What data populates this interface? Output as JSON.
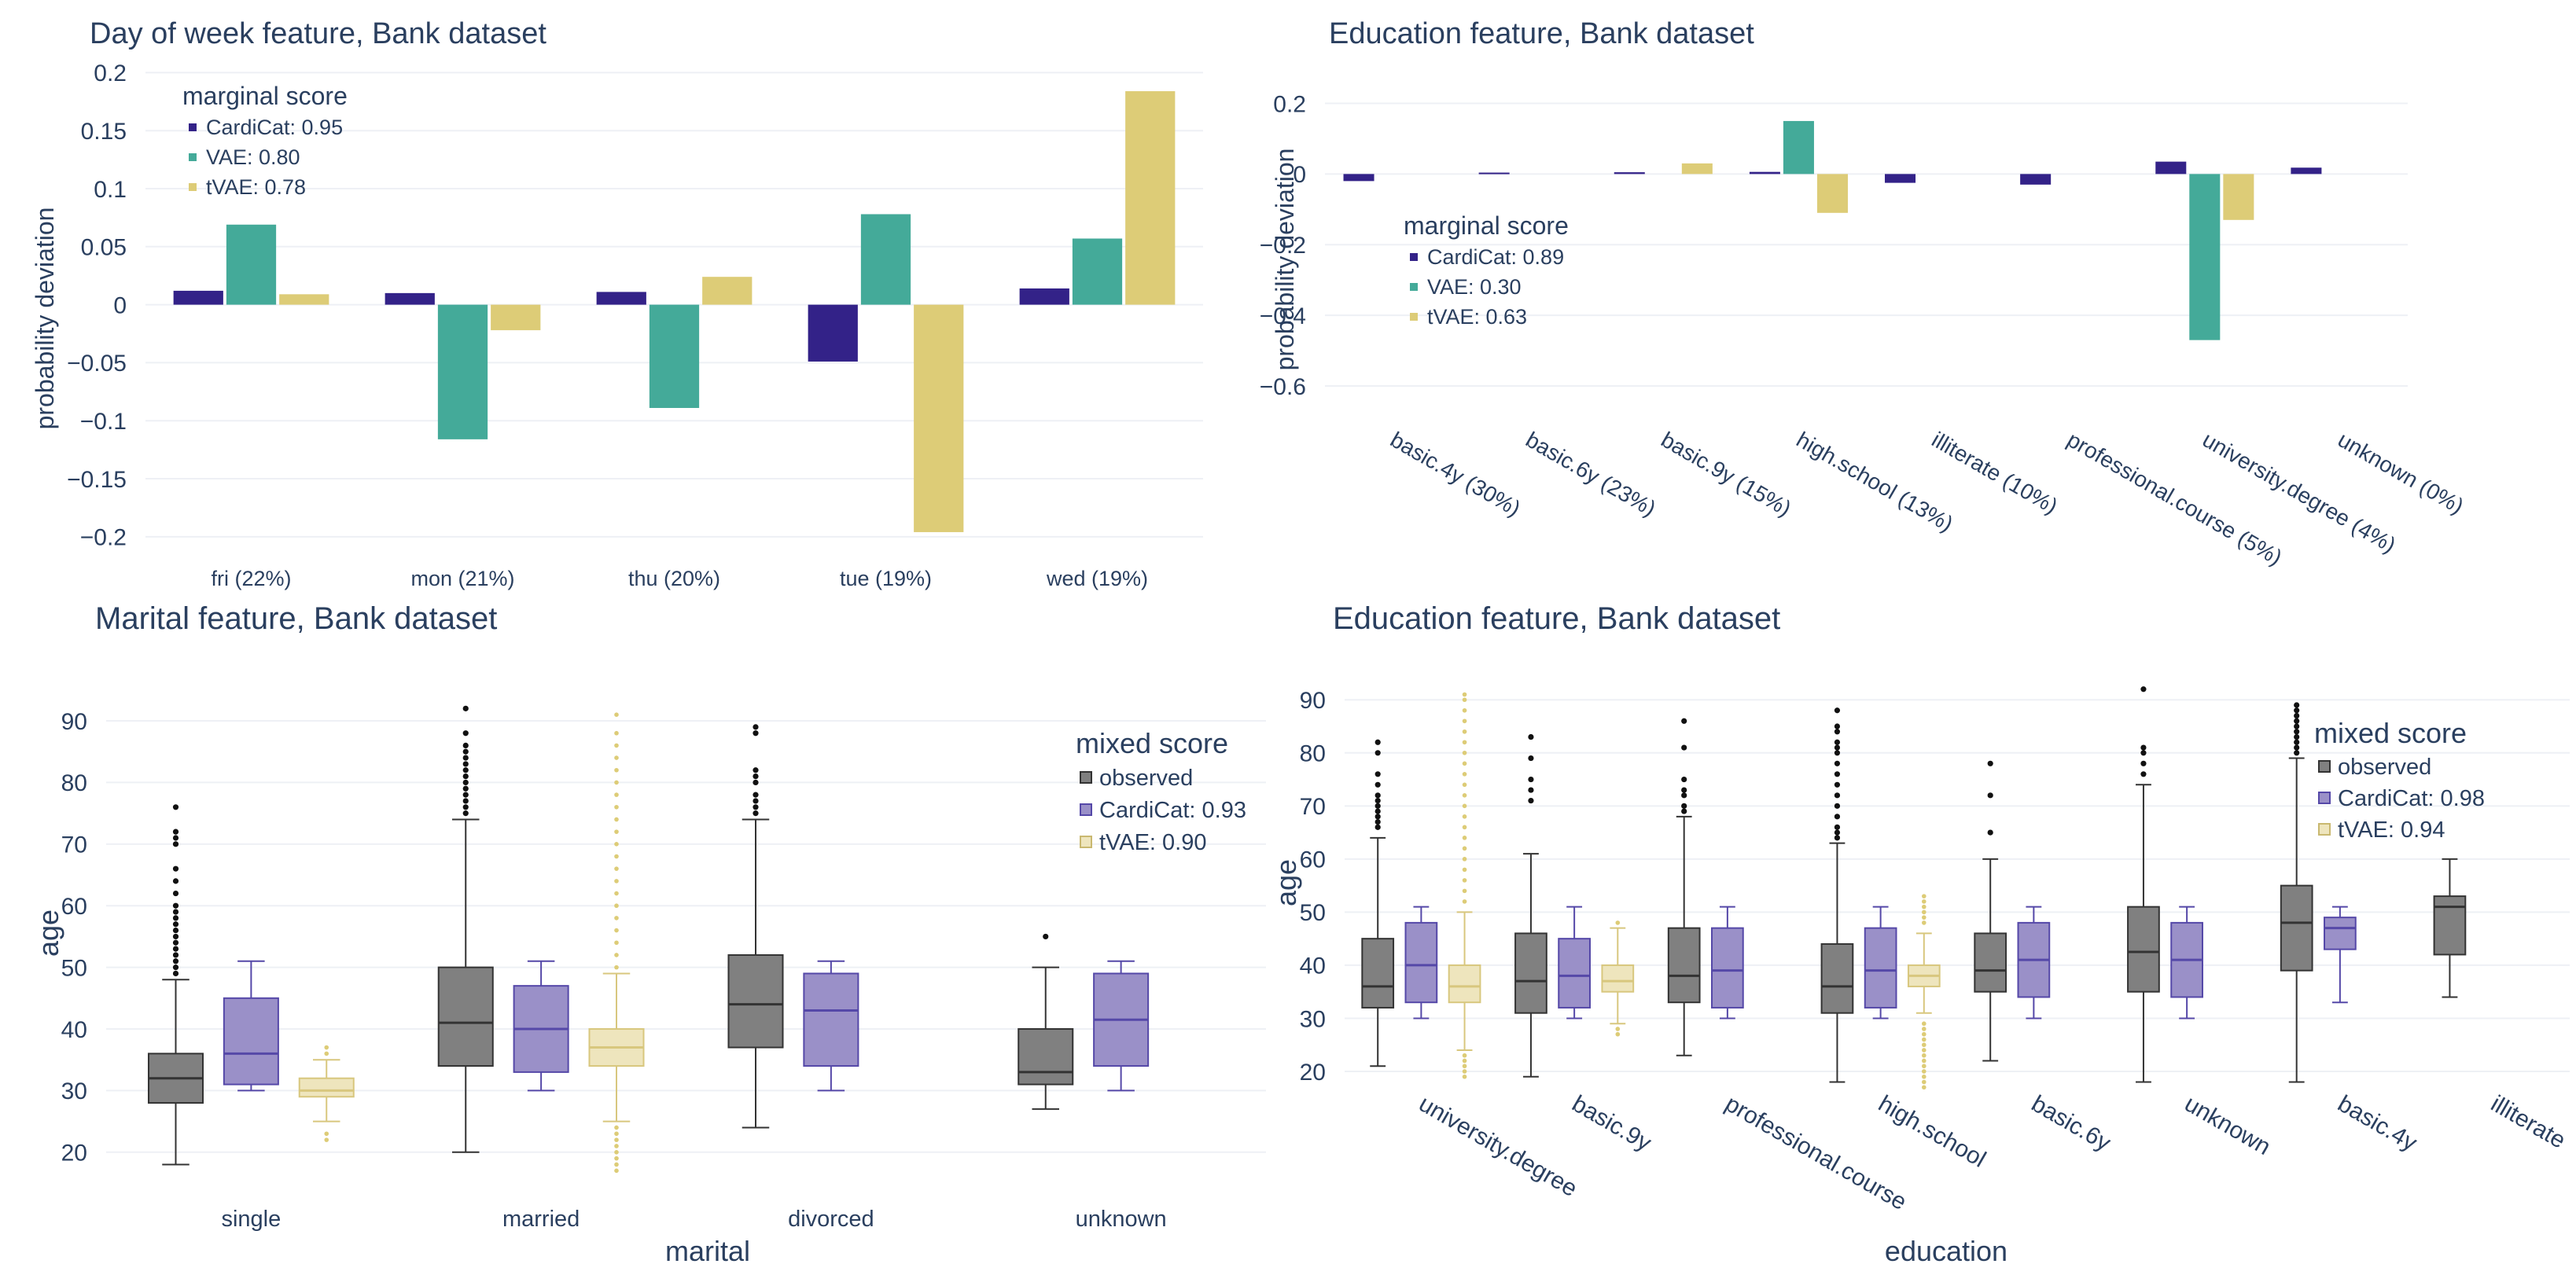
{
  "colors": {
    "text": "#2a3f5f",
    "grid": "#eef0f5",
    "cardicat": "#332288",
    "vae": "#44aa99",
    "tvae": "#ddcc77",
    "observed": "#808080",
    "cardicat_box": "#9a90c8",
    "tvae_box": "#eee5bd"
  },
  "chart_data": [
    {
      "id": "dow",
      "type": "bar",
      "title": "Day of week feature, Bank dataset",
      "ylabel": "probability deviation",
      "xlabel": "",
      "categories": [
        "fri (22%)",
        "mon (21%)",
        "thu (20%)",
        "tue (19%)",
        "wed (19%)"
      ],
      "ylim": [
        -0.215,
        0.205
      ],
      "yticks": [
        -0.2,
        -0.15,
        -0.1,
        -0.05,
        0,
        0.05,
        0.1,
        0.15,
        0.2
      ],
      "ytick_labels": [
        "−0.2",
        "−0.15",
        "−0.1",
        "−0.05",
        "0",
        "0.05",
        "0.1",
        "0.15",
        "0.2"
      ],
      "legend_title": "marginal score",
      "legend_position": "top-left",
      "series": [
        {
          "name": "CardiCat: 0.95",
          "color_key": "cardicat",
          "values": [
            0.012,
            0.01,
            0.011,
            -0.049,
            0.014
          ]
        },
        {
          "name": "VAE: 0.80",
          "color_key": "vae",
          "values": [
            0.069,
            -0.116,
            -0.089,
            0.078,
            0.057
          ]
        },
        {
          "name": "tVAE: 0.78",
          "color_key": "tvae",
          "values": [
            0.009,
            -0.022,
            0.024,
            -0.196,
            0.184
          ]
        }
      ]
    },
    {
      "id": "edu_bar",
      "type": "bar",
      "title": "Education feature, Bank dataset",
      "ylabel": "probability deviation",
      "xlabel": "",
      "categories": [
        "basic.4y (30%)",
        "basic.6y (23%)",
        "basic.9y (15%)",
        "high.school (13%)",
        "illiterate (10%)",
        "professional.course (5%)",
        "university.degree (4%)",
        "unknown (0%)"
      ],
      "ylim": [
        -0.72,
        0.27
      ],
      "yticks": [
        -0.6,
        -0.4,
        -0.2,
        0,
        0.2
      ],
      "ytick_labels": [
        "−0.6",
        "−0.4",
        "−0.2",
        "0",
        "0.2"
      ],
      "legend_title": "marginal score",
      "legend_position": "middle-left",
      "series": [
        {
          "name": "CardiCat: 0.89",
          "color_key": "cardicat",
          "values": [
            -0.02,
            0.004,
            0.005,
            0.006,
            -0.025,
            -0.03,
            0.035,
            0.018
          ]
        },
        {
          "name": "VAE: 0.30",
          "color_key": "vae",
          "values": [
            0,
            0,
            0,
            0.15,
            0,
            0,
            -0.47,
            0
          ]
        },
        {
          "name": "tVAE: 0.63",
          "color_key": "tvae",
          "values": [
            0,
            0,
            0.03,
            -0.11,
            0,
            0,
            -0.13,
            0
          ]
        }
      ]
    },
    {
      "id": "marital_box",
      "type": "box",
      "title": "Marital feature, Bank dataset",
      "ylabel": "age",
      "xlabel": "marital",
      "categories": [
        "single",
        "married",
        "divorced",
        "unknown"
      ],
      "ylim": [
        15,
        96
      ],
      "yticks": [
        20,
        30,
        40,
        50,
        60,
        70,
        80,
        90
      ],
      "legend_title": "mixed score",
      "legend_position": "top-right",
      "series": [
        {
          "name": "observed",
          "color_key": "observed",
          "boxes": [
            {
              "min": 18,
              "q1": 28,
              "median": 32,
              "q3": 36,
              "max": 48,
              "outliers": [
                49,
                50,
                51,
                52,
                53,
                54,
                55,
                56,
                57,
                58,
                59,
                60,
                62,
                64,
                66,
                70,
                71,
                72,
                76
              ]
            },
            {
              "min": 20,
              "q1": 34,
              "median": 41,
              "q3": 50,
              "max": 74,
              "outliers": [
                75,
                76,
                77,
                78,
                79,
                80,
                81,
                82,
                83,
                84,
                85,
                86,
                88,
                92
              ]
            },
            {
              "min": 24,
              "q1": 37,
              "median": 44,
              "q3": 52,
              "max": 74,
              "outliers": [
                75,
                76,
                77,
                78,
                80,
                81,
                82,
                88,
                89
              ]
            },
            {
              "min": 27,
              "q1": 31,
              "median": 33,
              "q3": 40,
              "max": 50,
              "outliers": [
                55
              ]
            }
          ]
        },
        {
          "name": "CardiCat: 0.93",
          "color_key": "cardicat_box",
          "boxes": [
            {
              "min": 30,
              "q1": 31,
              "median": 36,
              "q3": 45,
              "max": 51,
              "outliers": []
            },
            {
              "min": 30,
              "q1": 33,
              "median": 40,
              "q3": 47,
              "max": 51,
              "outliers": []
            },
            {
              "min": 30,
              "q1": 34,
              "median": 43,
              "q3": 49,
              "max": 51,
              "outliers": []
            },
            {
              "min": 30,
              "q1": 34,
              "median": 41.5,
              "q3": 49,
              "max": 51,
              "outliers": []
            }
          ]
        },
        {
          "name": "tVAE: 0.90",
          "color_key": "tvae_box",
          "boxes": [
            {
              "min": 25,
              "q1": 29,
              "median": 30,
              "q3": 32,
              "max": 35,
              "outliers": [
                22,
                23,
                36,
                37
              ]
            },
            {
              "min": 25,
              "q1": 34,
              "median": 37,
              "q3": 40,
              "max": 49,
              "outliers": [
                17,
                18,
                19,
                20,
                21,
                22,
                23,
                24,
                50,
                52,
                54,
                56,
                58,
                60,
                62,
                64,
                66,
                68,
                70,
                72,
                74,
                76,
                78,
                80,
                82,
                84,
                86,
                88,
                91
              ]
            },
            null,
            null
          ]
        }
      ]
    },
    {
      "id": "edu_box",
      "type": "box",
      "title": "Education feature, Bank dataset",
      "ylabel": "age",
      "xlabel": "education",
      "categories": [
        "university.degree",
        "basic.9y",
        "professional.course",
        "high.school",
        "basic.6y",
        "unknown",
        "basic.4y",
        "illiterate"
      ],
      "ylim": [
        16,
        93
      ],
      "yticks": [
        20,
        30,
        40,
        50,
        60,
        70,
        80,
        90
      ],
      "legend_title": "mixed score",
      "legend_position": "top-right",
      "series": [
        {
          "name": "observed",
          "color_key": "observed",
          "boxes": [
            {
              "min": 21,
              "q1": 32,
              "median": 36,
              "q3": 45,
              "max": 64,
              "outliers": [
                66,
                67,
                68,
                69,
                70,
                71,
                72,
                74,
                76,
                80,
                82
              ]
            },
            {
              "min": 19,
              "q1": 31,
              "median": 37,
              "q3": 46,
              "max": 61,
              "outliers": [
                71,
                73,
                75,
                79,
                83
              ]
            },
            {
              "min": 23,
              "q1": 33,
              "median": 38,
              "q3": 47,
              "max": 68,
              "outliers": [
                69,
                70,
                72,
                73,
                75,
                81,
                86
              ]
            },
            {
              "min": 18,
              "q1": 31,
              "median": 36,
              "q3": 44,
              "max": 63,
              "outliers": [
                64,
                65,
                66,
                68,
                70,
                72,
                74,
                76,
                78,
                80,
                81,
                82,
                84,
                85,
                88
              ]
            },
            {
              "min": 22,
              "q1": 35,
              "median": 39,
              "q3": 46,
              "max": 60,
              "outliers": [
                65,
                72,
                78
              ]
            },
            {
              "min": 18,
              "q1": 35,
              "median": 42.5,
              "q3": 51,
              "max": 74,
              "outliers": [
                76,
                78,
                80,
                81,
                92
              ]
            },
            {
              "min": 18,
              "q1": 39,
              "median": 48,
              "q3": 55,
              "max": 79,
              "outliers": [
                80,
                81,
                82,
                83,
                84,
                85,
                86,
                87,
                88,
                89
              ]
            },
            {
              "min": 34,
              "q1": 42,
              "median": 51,
              "q3": 53,
              "max": 60,
              "outliers": []
            }
          ]
        },
        {
          "name": "CardiCat: 0.98",
          "color_key": "cardicat_box",
          "boxes": [
            {
              "min": 30,
              "q1": 33,
              "median": 40,
              "q3": 48,
              "max": 51,
              "outliers": []
            },
            {
              "min": 30,
              "q1": 32,
              "median": 38,
              "q3": 45,
              "max": 51,
              "outliers": []
            },
            {
              "min": 30,
              "q1": 32,
              "median": 39,
              "q3": 47,
              "max": 51,
              "outliers": []
            },
            {
              "min": 30,
              "q1": 32,
              "median": 39,
              "q3": 47,
              "max": 51,
              "outliers": []
            },
            {
              "min": 30,
              "q1": 34,
              "median": 41,
              "q3": 48,
              "max": 51,
              "outliers": []
            },
            {
              "min": 30,
              "q1": 34,
              "median": 41,
              "q3": 48,
              "max": 51,
              "outliers": []
            },
            {
              "min": 33,
              "q1": 43,
              "median": 47,
              "q3": 49,
              "max": 51,
              "outliers": []
            },
            null
          ]
        },
        {
          "name": "tVAE: 0.94",
          "color_key": "tvae_box",
          "boxes": [
            {
              "min": 24,
              "q1": 33,
              "median": 36,
              "q3": 40,
              "max": 50,
              "outliers": [
                19,
                20,
                21,
                22,
                23,
                52,
                54,
                56,
                58,
                60,
                62,
                64,
                66,
                68,
                70,
                72,
                74,
                76,
                78,
                80,
                82,
                84,
                86,
                88,
                90,
                91
              ]
            },
            {
              "min": 29,
              "q1": 35,
              "median": 37,
              "q3": 40,
              "max": 47,
              "outliers": [
                27,
                28,
                48
              ]
            },
            null,
            {
              "min": 31,
              "q1": 36,
              "median": 38,
              "q3": 40,
              "max": 46,
              "outliers": [
                17,
                18,
                19,
                20,
                21,
                22,
                23,
                24,
                25,
                26,
                27,
                28,
                29,
                48,
                49,
                50,
                51,
                52,
                53
              ]
            },
            null,
            null,
            null,
            null
          ]
        }
      ]
    }
  ]
}
